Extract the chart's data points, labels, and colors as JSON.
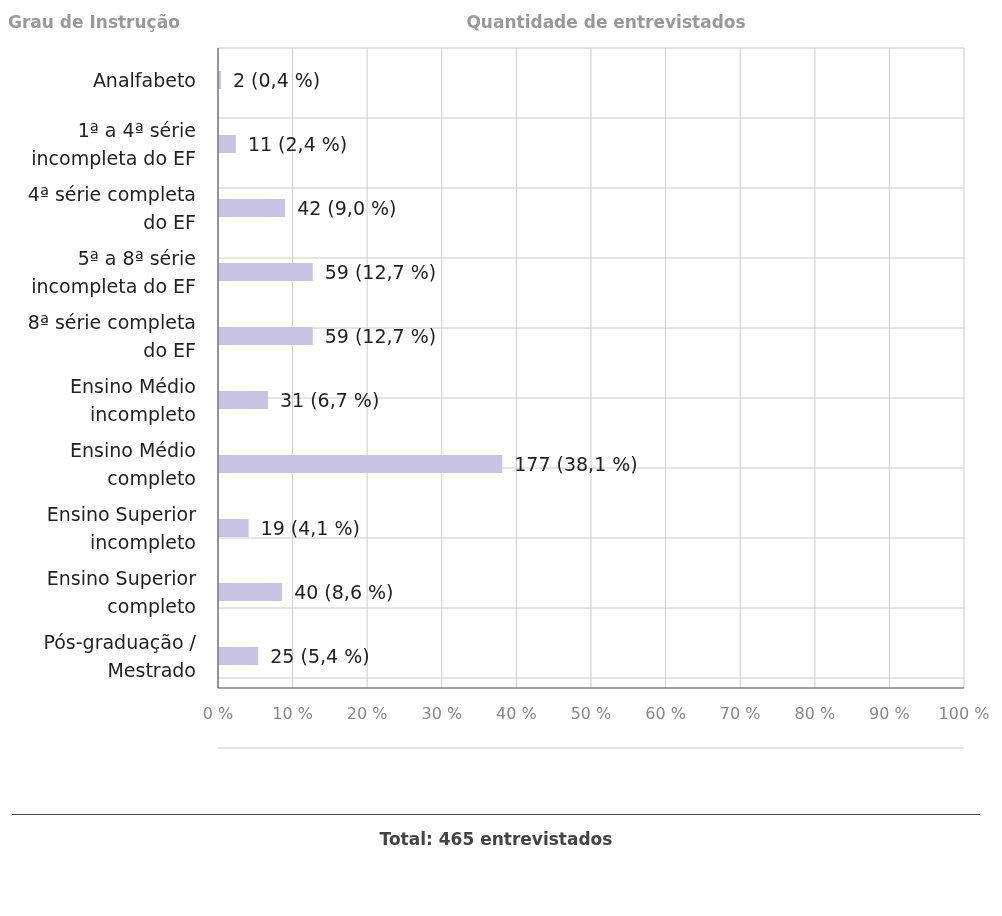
{
  "chart_data": {
    "type": "bar",
    "orientation": "horizontal",
    "ylabel": "Grau de Instrução",
    "xlabel": "Quantidade de entrevistados",
    "categories": [
      "Analfabeto",
      "1ª a 4ª série incompleta do EF",
      "4ª série completa do EF",
      "5ª a 8ª série incompleta do EF",
      "8ª série completa do EF",
      "Ensino Médio incompleto",
      "Ensino Médio completo",
      "Ensino Superior incompleto",
      "Ensino Superior completo",
      "Pós-graduação / Mestrado"
    ],
    "values": [
      0.4,
      2.4,
      9.0,
      12.7,
      12.7,
      6.7,
      38.1,
      4.1,
      8.6,
      5.4
    ],
    "value_labels": [
      "2  (0,4 %)",
      "11  (2,4 %)",
      "42  (9,0 %)",
      "59  (12,7 %)",
      "59  (12,7 %)",
      "31  (6,7 %)",
      "177  (38,1 %)",
      "19  (4,1 %)",
      "40  (8,6 %)",
      "25  (5,4 %)"
    ],
    "color": "#c9c3e3",
    "xlim": [
      0,
      100
    ],
    "xticks": [
      {
        "value": 0,
        "label": "0 %"
      },
      {
        "value": 10,
        "label": "10 %"
      },
      {
        "value": 20,
        "label": "20 %"
      },
      {
        "value": 30,
        "label": "30 %"
      },
      {
        "value": 40,
        "label": "40 %"
      },
      {
        "value": 50,
        "label": "50 %"
      },
      {
        "value": 60,
        "label": "60 %"
      },
      {
        "value": 70,
        "label": "70 %"
      },
      {
        "value": 80,
        "label": "80 %"
      },
      {
        "value": 90,
        "label": "90 %"
      },
      {
        "value": 100,
        "label": "100 %"
      }
    ],
    "grid": true,
    "annotations": [
      "Total: 465 entrevistados"
    ]
  }
}
